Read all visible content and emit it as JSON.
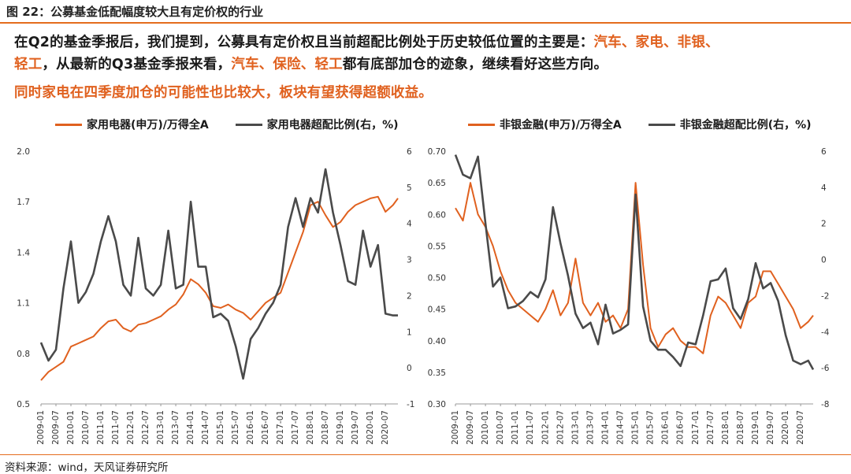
{
  "figure_title": "图 22：公募基金低配幅度较大且有定价权的行业",
  "paragraph": {
    "line1_pre": "在Q2的基金季报后，我们提到，公募具有定价权且当前超配比例处于历史较低位置的主要是：",
    "line1_hl": "汽车、家电、非银、",
    "line2_hl1": "轻工",
    "line2_mid": "，从最新的Q3基金季报来看，",
    "line2_hl2": "汽车、保险、轻工",
    "line2_post": "都有底部加仓的迹象，继续看好这些方向。",
    "line3": "同时家电在四季度加仓的可能性也比较大，板块有望获得超额收益。"
  },
  "source": "资料来源：wind，天风证券研究所",
  "colors": {
    "orange": "#e0611f",
    "gray": "#4a4a4a",
    "accent_rule": "#e46c1d"
  },
  "chart_data": [
    {
      "type": "line",
      "x_range": [
        "2009-01",
        "2020-12"
      ],
      "xticks": [
        "2009-01",
        "2009-07",
        "2010-01",
        "2010-07",
        "2011-01",
        "2011-07",
        "2012-01",
        "2012-07",
        "2013-01",
        "2013-07",
        "2014-01",
        "2014-07",
        "2015-01",
        "2015-07",
        "2016-01",
        "2016-07",
        "2017-01",
        "2017-07",
        "2018-01",
        "2018-07",
        "2019-01",
        "2019-07",
        "2020-01",
        "2020-07"
      ],
      "ylim_left": [
        0.5,
        2.0
      ],
      "yticks_left": [
        "0.5",
        "0.8",
        "1.1",
        "1.4",
        "1.7",
        "2.0"
      ],
      "ylim_right": [
        -1,
        6
      ],
      "yticks_right": [
        "-1",
        "0",
        "1",
        "2",
        "3",
        "4",
        "5",
        "6"
      ],
      "series": [
        {
          "name": "家用电器(申万)/万得全A",
          "axis": "left",
          "color": "#e0611f",
          "points": [
            [
              "2009-01",
              0.64
            ],
            [
              "2009-04",
              0.69
            ],
            [
              "2009-07",
              0.72
            ],
            [
              "2009-10",
              0.75
            ],
            [
              "2010-01",
              0.84
            ],
            [
              "2010-04",
              0.86
            ],
            [
              "2010-07",
              0.88
            ],
            [
              "2010-10",
              0.9
            ],
            [
              "2011-01",
              0.95
            ],
            [
              "2011-04",
              0.99
            ],
            [
              "2011-07",
              1.0
            ],
            [
              "2011-10",
              0.95
            ],
            [
              "2012-01",
              0.93
            ],
            [
              "2012-04",
              0.97
            ],
            [
              "2012-07",
              0.98
            ],
            [
              "2012-10",
              1.0
            ],
            [
              "2013-01",
              1.02
            ],
            [
              "2013-04",
              1.06
            ],
            [
              "2013-07",
              1.09
            ],
            [
              "2013-10",
              1.15
            ],
            [
              "2014-01",
              1.24
            ],
            [
              "2014-04",
              1.21
            ],
            [
              "2014-07",
              1.16
            ],
            [
              "2014-10",
              1.08
            ],
            [
              "2015-01",
              1.07
            ],
            [
              "2015-04",
              1.09
            ],
            [
              "2015-07",
              1.06
            ],
            [
              "2015-10",
              1.04
            ],
            [
              "2016-01",
              1.0
            ],
            [
              "2016-04",
              1.05
            ],
            [
              "2016-07",
              1.1
            ],
            [
              "2016-10",
              1.13
            ],
            [
              "2017-01",
              1.16
            ],
            [
              "2017-04",
              1.28
            ],
            [
              "2017-07",
              1.4
            ],
            [
              "2017-10",
              1.52
            ],
            [
              "2018-01",
              1.68
            ],
            [
              "2018-04",
              1.7
            ],
            [
              "2018-07",
              1.62
            ],
            [
              "2018-10",
              1.55
            ],
            [
              "2019-01",
              1.58
            ],
            [
              "2019-04",
              1.64
            ],
            [
              "2019-07",
              1.68
            ],
            [
              "2019-10",
              1.7
            ],
            [
              "2020-01",
              1.72
            ],
            [
              "2020-04",
              1.73
            ],
            [
              "2020-07",
              1.64
            ],
            [
              "2020-10",
              1.68
            ],
            [
              "2020-12",
              1.72
            ]
          ]
        },
        {
          "name": "家用电器超配比例(右，%)",
          "axis": "right",
          "color": "#4a4a4a",
          "points": [
            [
              "2009-01",
              0.7
            ],
            [
              "2009-04",
              0.2
            ],
            [
              "2009-07",
              0.5
            ],
            [
              "2009-10",
              2.2
            ],
            [
              "2010-01",
              3.5
            ],
            [
              "2010-04",
              1.8
            ],
            [
              "2010-07",
              2.1
            ],
            [
              "2010-10",
              2.6
            ],
            [
              "2011-01",
              3.5
            ],
            [
              "2011-04",
              4.2
            ],
            [
              "2011-07",
              3.5
            ],
            [
              "2011-10",
              2.3
            ],
            [
              "2012-01",
              2.0
            ],
            [
              "2012-04",
              3.6
            ],
            [
              "2012-07",
              2.2
            ],
            [
              "2012-10",
              2.0
            ],
            [
              "2013-01",
              2.3
            ],
            [
              "2013-04",
              3.8
            ],
            [
              "2013-07",
              2.2
            ],
            [
              "2013-10",
              2.3
            ],
            [
              "2014-01",
              4.6
            ],
            [
              "2014-04",
              2.8
            ],
            [
              "2014-07",
              2.8
            ],
            [
              "2014-10",
              1.4
            ],
            [
              "2015-01",
              1.5
            ],
            [
              "2015-04",
              1.3
            ],
            [
              "2015-07",
              0.6
            ],
            [
              "2015-10",
              -0.3
            ],
            [
              "2016-01",
              0.8
            ],
            [
              "2016-04",
              1.1
            ],
            [
              "2016-07",
              1.5
            ],
            [
              "2016-10",
              1.8
            ],
            [
              "2017-01",
              2.3
            ],
            [
              "2017-04",
              3.9
            ],
            [
              "2017-07",
              4.7
            ],
            [
              "2017-10",
              3.9
            ],
            [
              "2018-01",
              4.7
            ],
            [
              "2018-04",
              4.3
            ],
            [
              "2018-07",
              5.5
            ],
            [
              "2018-10",
              4.3
            ],
            [
              "2019-01",
              3.4
            ],
            [
              "2019-04",
              2.4
            ],
            [
              "2019-07",
              2.3
            ],
            [
              "2019-10",
              3.8
            ],
            [
              "2020-01",
              2.8
            ],
            [
              "2020-04",
              3.4
            ],
            [
              "2020-07",
              1.5
            ],
            [
              "2020-10",
              1.45
            ],
            [
              "2020-12",
              1.45
            ]
          ]
        }
      ]
    },
    {
      "type": "line",
      "x_range": [
        "2009-01",
        "2020-12"
      ],
      "xticks": [
        "2009-01",
        "2009-07",
        "2010-01",
        "2010-07",
        "2011-01",
        "2011-07",
        "2012-01",
        "2012-07",
        "2013-01",
        "2013-07",
        "2014-01",
        "2014-07",
        "2015-01",
        "2015-07",
        "2016-01",
        "2016-07",
        "2017-01",
        "2017-07",
        "2018-01",
        "2018-07",
        "2019-01",
        "2019-07",
        "2020-01",
        "2020-07"
      ],
      "ylim_left": [
        0.3,
        0.7
      ],
      "yticks_left": [
        "0.30",
        "0.35",
        "0.40",
        "0.45",
        "0.50",
        "0.55",
        "0.60",
        "0.65",
        "0.70"
      ],
      "ylim_right": [
        -8,
        6
      ],
      "yticks_right": [
        "-8",
        "-6",
        "-4",
        "-2",
        "0",
        "2",
        "4",
        "6"
      ],
      "series": [
        {
          "name": "非银金融(申万)/万得全A",
          "axis": "left",
          "color": "#e0611f",
          "points": [
            [
              "2009-01",
              0.61
            ],
            [
              "2009-04",
              0.59
            ],
            [
              "2009-07",
              0.65
            ],
            [
              "2009-10",
              0.6
            ],
            [
              "2010-01",
              0.58
            ],
            [
              "2010-04",
              0.55
            ],
            [
              "2010-07",
              0.51
            ],
            [
              "2010-10",
              0.48
            ],
            [
              "2011-01",
              0.46
            ],
            [
              "2011-04",
              0.45
            ],
            [
              "2011-07",
              0.44
            ],
            [
              "2011-10",
              0.43
            ],
            [
              "2012-01",
              0.45
            ],
            [
              "2012-04",
              0.48
            ],
            [
              "2012-07",
              0.44
            ],
            [
              "2012-10",
              0.46
            ],
            [
              "2013-01",
              0.53
            ],
            [
              "2013-04",
              0.46
            ],
            [
              "2013-07",
              0.44
            ],
            [
              "2013-10",
              0.46
            ],
            [
              "2014-01",
              0.43
            ],
            [
              "2014-04",
              0.44
            ],
            [
              "2014-07",
              0.42
            ],
            [
              "2014-10",
              0.45
            ],
            [
              "2015-01",
              0.65
            ],
            [
              "2015-04",
              0.52
            ],
            [
              "2015-07",
              0.42
            ],
            [
              "2015-10",
              0.39
            ],
            [
              "2016-01",
              0.41
            ],
            [
              "2016-04",
              0.42
            ],
            [
              "2016-07",
              0.4
            ],
            [
              "2016-10",
              0.39
            ],
            [
              "2017-01",
              0.39
            ],
            [
              "2017-04",
              0.38
            ],
            [
              "2017-07",
              0.44
            ],
            [
              "2017-10",
              0.47
            ],
            [
              "2018-01",
              0.46
            ],
            [
              "2018-04",
              0.44
            ],
            [
              "2018-07",
              0.42
            ],
            [
              "2018-10",
              0.46
            ],
            [
              "2019-01",
              0.47
            ],
            [
              "2019-04",
              0.51
            ],
            [
              "2019-07",
              0.51
            ],
            [
              "2019-10",
              0.49
            ],
            [
              "2020-01",
              0.47
            ],
            [
              "2020-04",
              0.45
            ],
            [
              "2020-07",
              0.42
            ],
            [
              "2020-10",
              0.43
            ],
            [
              "2020-12",
              0.44
            ]
          ]
        },
        {
          "name": "非银金融超配比例(右，%)",
          "axis": "right",
          "color": "#4a4a4a",
          "points": [
            [
              "2009-01",
              5.8
            ],
            [
              "2009-04",
              4.7
            ],
            [
              "2009-07",
              4.5
            ],
            [
              "2009-10",
              5.7
            ],
            [
              "2010-01",
              2.0
            ],
            [
              "2010-04",
              -1.5
            ],
            [
              "2010-07",
              -1.0
            ],
            [
              "2010-10",
              -2.7
            ],
            [
              "2011-01",
              -2.6
            ],
            [
              "2011-04",
              -2.3
            ],
            [
              "2011-07",
              -1.8
            ],
            [
              "2011-10",
              -2.1
            ],
            [
              "2012-01",
              -1.1
            ],
            [
              "2012-04",
              2.9
            ],
            [
              "2012-07",
              0.9
            ],
            [
              "2012-10",
              -0.9
            ],
            [
              "2013-01",
              -3.0
            ],
            [
              "2013-04",
              -3.8
            ],
            [
              "2013-07",
              -3.5
            ],
            [
              "2013-10",
              -4.7
            ],
            [
              "2014-01",
              -2.5
            ],
            [
              "2014-04",
              -4.1
            ],
            [
              "2014-07",
              -3.9
            ],
            [
              "2014-10",
              -3.6
            ],
            [
              "2015-01",
              3.6
            ],
            [
              "2015-04",
              -2.6
            ],
            [
              "2015-07",
              -4.5
            ],
            [
              "2015-10",
              -5.0
            ],
            [
              "2016-01",
              -5.0
            ],
            [
              "2016-04",
              -5.4
            ],
            [
              "2016-07",
              -5.9
            ],
            [
              "2016-10",
              -4.6
            ],
            [
              "2017-01",
              -4.7
            ],
            [
              "2017-04",
              -3.1
            ],
            [
              "2017-07",
              -1.2
            ],
            [
              "2017-10",
              -1.1
            ],
            [
              "2018-01",
              -0.5
            ],
            [
              "2018-04",
              -2.7
            ],
            [
              "2018-07",
              -3.3
            ],
            [
              "2018-10",
              -2.2
            ],
            [
              "2019-01",
              -0.2
            ],
            [
              "2019-04",
              -1.6
            ],
            [
              "2019-07",
              -1.3
            ],
            [
              "2019-10",
              -2.3
            ],
            [
              "2020-01",
              -4.2
            ],
            [
              "2020-04",
              -5.6
            ],
            [
              "2020-07",
              -5.8
            ],
            [
              "2020-10",
              -5.6
            ],
            [
              "2020-12",
              -6.1
            ]
          ]
        }
      ]
    }
  ]
}
